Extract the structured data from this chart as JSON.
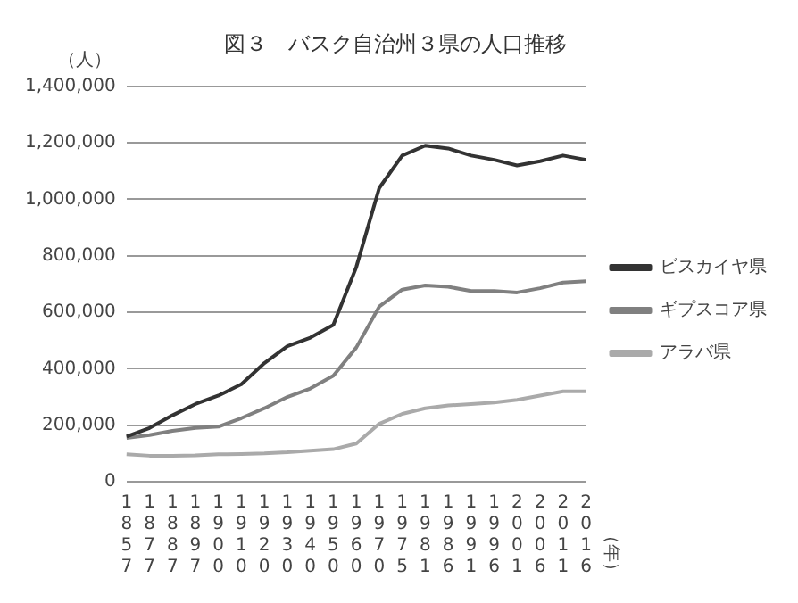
{
  "chart_data": {
    "type": "line",
    "title": "図３　バスク自治州３県の人口推移",
    "ylabel": "（人）",
    "annotations": [
      "（年）"
    ],
    "categories": [
      "1857",
      "1877",
      "1887",
      "1897",
      "1900",
      "1910",
      "1920",
      "1930",
      "1940",
      "1950",
      "1960",
      "1970",
      "1975",
      "1981",
      "1986",
      "1991",
      "1996",
      "2001",
      "2006",
      "2011",
      "2016"
    ],
    "series": [
      {
        "name": "ビスカイヤ県",
        "color": "#333333",
        "values": [
          160000,
          190000,
          235000,
          275000,
          305000,
          345000,
          420000,
          480000,
          510000,
          555000,
          760000,
          1040000,
          1155000,
          1190000,
          1180000,
          1155000,
          1140000,
          1120000,
          1135000,
          1155000,
          1140000
        ]
      },
      {
        "name": "ギプスコア県",
        "color": "#808080",
        "values": [
          155000,
          165000,
          180000,
          190000,
          195000,
          225000,
          260000,
          300000,
          330000,
          375000,
          475000,
          620000,
          680000,
          695000,
          690000,
          675000,
          675000,
          670000,
          685000,
          705000,
          710000
        ]
      },
      {
        "name": "アラバ県",
        "color": "#aaaaaa",
        "values": [
          97000,
          92000,
          92000,
          93000,
          97000,
          98000,
          100000,
          104000,
          110000,
          115000,
          135000,
          205000,
          240000,
          260000,
          270000,
          275000,
          280000,
          290000,
          305000,
          320000,
          320000
        ]
      }
    ],
    "ylim": [
      0,
      1400000
    ],
    "yticks": [
      0,
      {
        "value": 200000,
        "label": "200,000"
      },
      {
        "value": 400000,
        "label": "400,000"
      },
      {
        "value": 600000,
        "label": "600,000"
      },
      {
        "value": 800000,
        "label": "800,000"
      },
      {
        "value": 1000000,
        "label": "1,000,000"
      },
      {
        "value": 1200000,
        "label": "1,200,000"
      },
      {
        "value": 1400000,
        "label": "1,400,000"
      }
    ],
    "grid": "y",
    "legend": "right",
    "marker": "none",
    "line_style": "solid"
  }
}
